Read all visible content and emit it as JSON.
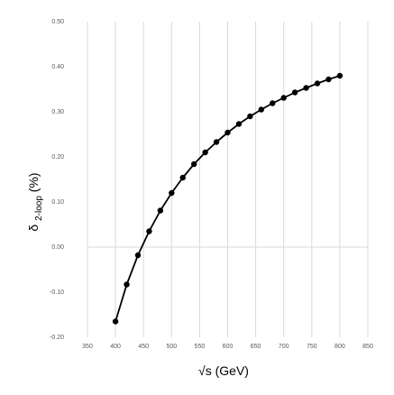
{
  "chart_data": {
    "type": "line",
    "title": "",
    "xlabel": "√s (GeV)",
    "ylabel": {
      "main": "δ",
      "subscript": "2-loop",
      "suffix": " (%)"
    },
    "xlim": [
      350,
      850
    ],
    "ylim": [
      -0.2,
      0.5
    ],
    "x_ticks": [
      350,
      400,
      450,
      500,
      550,
      600,
      650,
      700,
      750,
      800,
      850
    ],
    "y_ticks": [
      -0.2,
      -0.1,
      0.0,
      0.1,
      0.2,
      0.3,
      0.4,
      0.5
    ],
    "x_tick_labels": [
      "350",
      "400",
      "450",
      "500",
      "550",
      "600",
      "650",
      "700",
      "750",
      "800",
      "850"
    ],
    "y_tick_labels": [
      "-0.20",
      "-0.10",
      "0.00",
      "0.10",
      "0.20",
      "0.30",
      "0.40",
      "0.50"
    ],
    "grid": {
      "vertical": true,
      "horizontal": false,
      "zero_line": true
    },
    "legend": "none",
    "colors": {
      "line": "#000000",
      "marker": "#000000",
      "grid": "#d9d9d9",
      "zero_line": "#d9d9d9",
      "tick_text": "#595959"
    },
    "series": [
      {
        "x": [
          400,
          420,
          440,
          460,
          480,
          500,
          520,
          540,
          560,
          580,
          600,
          620,
          640,
          660,
          680,
          700,
          720,
          740,
          760,
          780,
          800
        ],
        "values": [
          -0.165,
          -0.083,
          -0.018,
          0.035,
          0.081,
          0.12,
          0.154,
          0.184,
          0.21,
          0.233,
          0.254,
          0.273,
          0.29,
          0.305,
          0.319,
          0.331,
          0.343,
          0.353,
          0.363,
          0.372,
          0.38
        ]
      }
    ]
  }
}
